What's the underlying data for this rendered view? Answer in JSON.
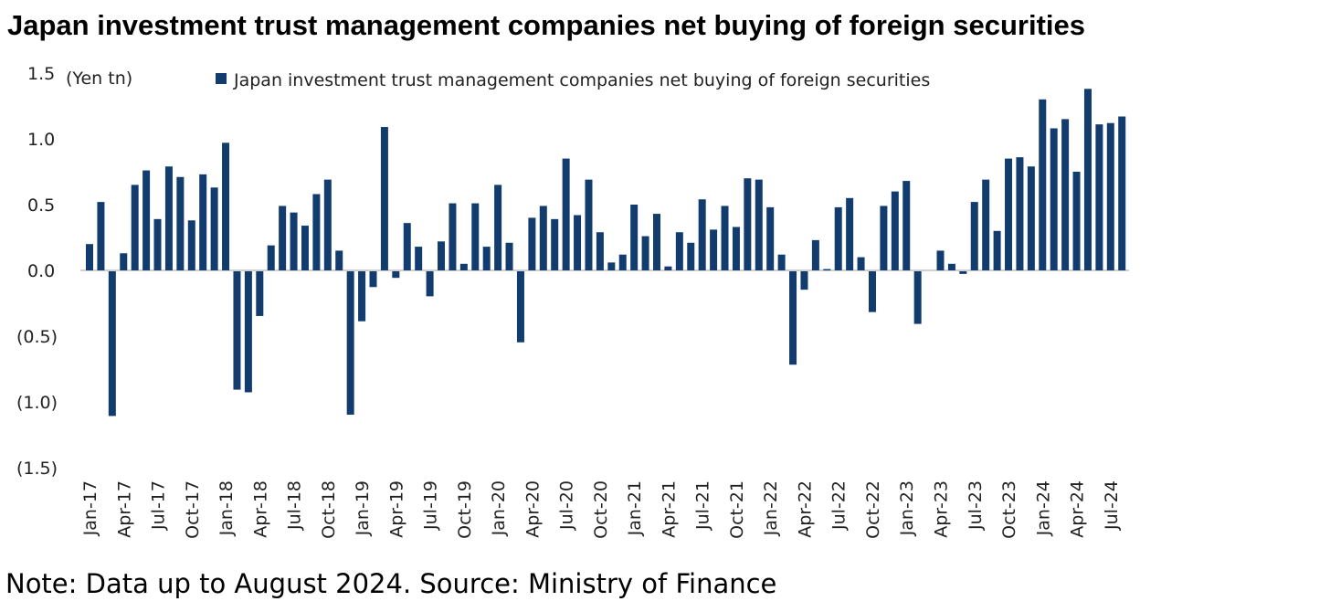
{
  "chart_data": {
    "type": "bar",
    "title": "Japan investment trust management companies net buying of foreign securities",
    "ylabel": "(Yen tn)",
    "xlabel": "",
    "ylim": [
      -1.5,
      1.5
    ],
    "yticks": [
      1.5,
      1.0,
      0.5,
      0.0,
      -0.5,
      -1.0,
      -1.5
    ],
    "ytick_labels": [
      "1.5",
      "1.0",
      "0.5",
      "0.0",
      "(0.5)",
      "(1.0)",
      "(1.5)"
    ],
    "legend": {
      "label": "Japan investment trust management companies net buying of foreign securities",
      "position": "top"
    },
    "color": "#123c6e",
    "grid": false,
    "xtick_labels": [
      "Jan-17",
      "Apr-17",
      "Jul-17",
      "Oct-17",
      "Jan-18",
      "Apr-18",
      "Jul-18",
      "Oct-18",
      "Jan-19",
      "Apr-19",
      "Jul-19",
      "Oct-19",
      "Jan-20",
      "Apr-20",
      "Jul-20",
      "Oct-20",
      "Jan-21",
      "Apr-21",
      "Jul-21",
      "Oct-21",
      "Jan-22",
      "Apr-22",
      "Jul-22",
      "Oct-22",
      "Jan-23",
      "Apr-23",
      "Jul-23",
      "Oct-23",
      "Jan-24",
      "Apr-24",
      "Jul-24"
    ],
    "start_month": "Jan-17",
    "values": [
      0.2,
      0.52,
      -1.1,
      0.13,
      0.65,
      0.76,
      0.39,
      0.79,
      0.71,
      0.38,
      0.73,
      0.63,
      0.97,
      -0.9,
      -0.92,
      -0.34,
      0.19,
      0.49,
      0.44,
      0.34,
      0.58,
      0.69,
      0.15,
      -1.09,
      -0.38,
      -0.12,
      1.09,
      -0.05,
      0.36,
      0.18,
      -0.19,
      0.22,
      0.51,
      0.05,
      0.51,
      0.18,
      0.65,
      0.21,
      -0.54,
      0.4,
      0.49,
      0.39,
      0.85,
      0.42,
      0.69,
      0.29,
      0.06,
      0.12,
      0.5,
      0.26,
      0.43,
      0.03,
      0.29,
      0.21,
      0.54,
      0.31,
      0.49,
      0.33,
      0.7,
      0.69,
      0.48,
      0.12,
      -0.71,
      -0.14,
      0.23,
      0.01,
      0.48,
      0.55,
      0.1,
      -0.31,
      0.49,
      0.6,
      0.68,
      -0.4,
      0.0,
      0.15,
      0.05,
      -0.02,
      0.52,
      0.69,
      0.3,
      0.85,
      0.86,
      0.79,
      1.3,
      1.08,
      1.15,
      0.75,
      1.38,
      1.11,
      1.12,
      1.17
    ]
  },
  "note": "Note: Data up to August 2024. Source: Ministry of Finance"
}
